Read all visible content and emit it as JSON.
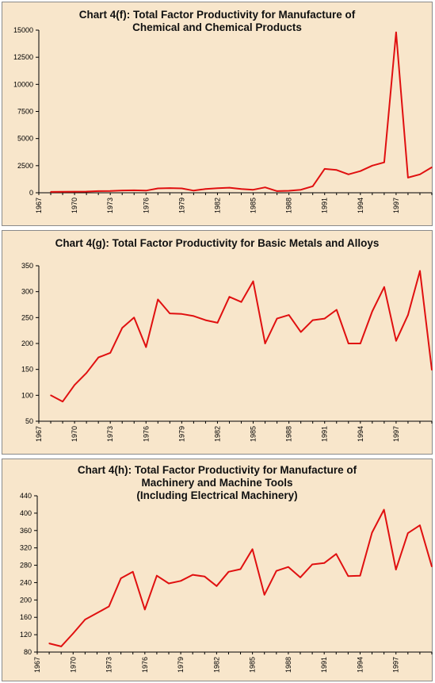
{
  "colors": {
    "background": "#f8e6cb",
    "line": "#e01010",
    "axis": "#000000",
    "border": "#8a8a8a"
  },
  "chart_data": [
    {
      "type": "line",
      "title_lines": [
        "Chart 4(f): Total Factor Productivity for Manufacture of",
        "Chemical and Chemical Products"
      ],
      "xlabel": "",
      "ylabel": "",
      "x_ticks": [
        "1967",
        "1970",
        "1973",
        "1976",
        "1979",
        "1982",
        "1985",
        "1988",
        "1991",
        "1994",
        "1997"
      ],
      "y_ticks": [
        "0",
        "2500",
        "5000",
        "7500",
        "10000",
        "12500",
        "15000"
      ],
      "ylim": [
        0,
        15000
      ],
      "grid": false,
      "x": [
        1968,
        1969,
        1970,
        1971,
        1972,
        1973,
        1974,
        1975,
        1976,
        1977,
        1978,
        1979,
        1980,
        1981,
        1982,
        1983,
        1984,
        1985,
        1986,
        1987,
        1988,
        1989,
        1990,
        1991,
        1992,
        1993,
        1994,
        1995,
        1996,
        1997,
        1998,
        1999,
        2000
      ],
      "series": [
        {
          "values": [
            80,
            90,
            100,
            110,
            150,
            170,
            210,
            230,
            200,
            400,
            430,
            400,
            200,
            350,
            420,
            470,
            350,
            280,
            500,
            150,
            180,
            280,
            600,
            2200,
            2100,
            1700,
            2000,
            2500,
            2800,
            14800,
            1400,
            1700,
            2350
          ]
        }
      ]
    },
    {
      "type": "line",
      "title_lines": [
        "Chart 4(g):  Total Factor Productivity for Basic Metals and Alloys"
      ],
      "xlabel": "",
      "ylabel": "",
      "x_ticks": [
        "1967",
        "1970",
        "1973",
        "1976",
        "1979",
        "1982",
        "1985",
        "1988",
        "1991",
        "1994",
        "1997"
      ],
      "y_ticks": [
        "50",
        "100",
        "150",
        "200",
        "250",
        "300",
        "350"
      ],
      "ylim": [
        50,
        350
      ],
      "grid": false,
      "x": [
        1968,
        1969,
        1970,
        1971,
        1972,
        1973,
        1974,
        1975,
        1976,
        1977,
        1978,
        1979,
        1980,
        1981,
        1982,
        1983,
        1984,
        1985,
        1986,
        1987,
        1988,
        1989,
        1990,
        1991,
        1992,
        1993,
        1994,
        1995,
        1996,
        1997,
        1998,
        1999,
        2000
      ],
      "series": [
        {
          "values": [
            100,
            88,
            120,
            143,
            173,
            182,
            230,
            250,
            193,
            285,
            258,
            257,
            253,
            245,
            240,
            290,
            280,
            320,
            200,
            248,
            255,
            222,
            245,
            248,
            265,
            200,
            200,
            262,
            309,
            205,
            255,
            340,
            149
          ]
        }
      ]
    },
    {
      "type": "line",
      "title_lines": [
        "Chart 4(h): Total Factor Productivity for Manufacture of",
        "Machinery and Machine Tools",
        "(Including Electrical Machinery)"
      ],
      "xlabel": "",
      "ylabel": "",
      "x_ticks": [
        "1967",
        "1970",
        "1973",
        "1976",
        "1979",
        "1982",
        "1985",
        "1988",
        "1991",
        "1994",
        "1997"
      ],
      "y_ticks": [
        "80",
        "120",
        "160",
        "200",
        "240",
        "280",
        "320",
        "360",
        "400",
        "440"
      ],
      "ylim": [
        80,
        440
      ],
      "grid": false,
      "x": [
        1968,
        1969,
        1970,
        1971,
        1972,
        1973,
        1974,
        1975,
        1976,
        1977,
        1978,
        1979,
        1980,
        1981,
        1982,
        1983,
        1984,
        1985,
        1986,
        1987,
        1988,
        1989,
        1990,
        1991,
        1992,
        1993,
        1994,
        1995,
        1996,
        1997,
        1998,
        1999,
        2000
      ],
      "series": [
        {
          "values": [
            100,
            93,
            123,
            155,
            170,
            185,
            250,
            265,
            178,
            256,
            238,
            244,
            258,
            254,
            232,
            265,
            271,
            317,
            212,
            267,
            276,
            252,
            282,
            285,
            306,
            255,
            256,
            355,
            408,
            270,
            354,
            372,
            277
          ]
        }
      ]
    }
  ]
}
